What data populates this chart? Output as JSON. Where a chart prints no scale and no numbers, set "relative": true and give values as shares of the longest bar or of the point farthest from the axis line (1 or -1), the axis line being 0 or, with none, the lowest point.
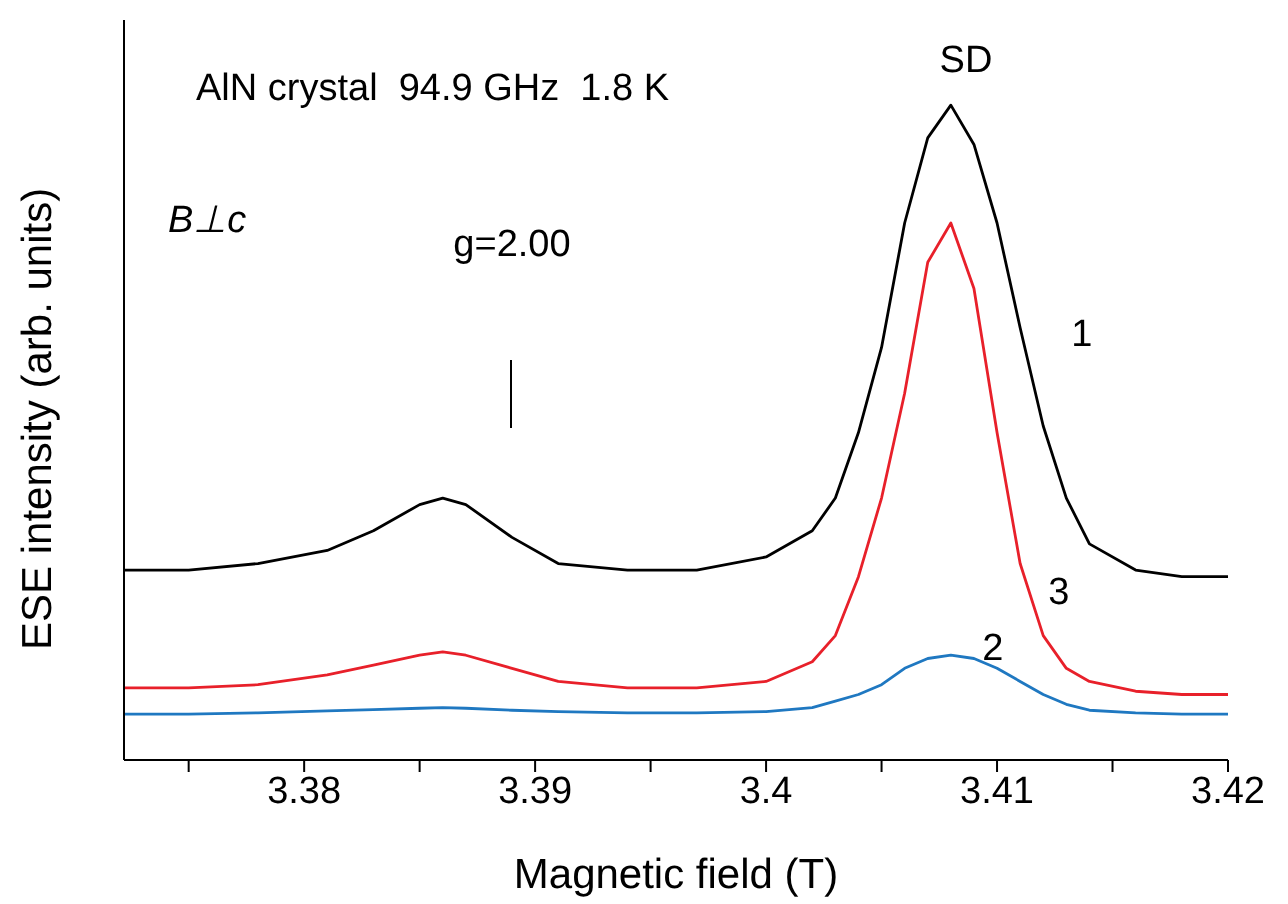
{
  "chart_data": {
    "type": "line",
    "relative": true,
    "xlabel": "Magnetic field (T)",
    "ylabel": "ESE intensity (arb. units)",
    "x": [
      3.3722,
      3.375,
      3.378,
      3.381,
      3.383,
      3.385,
      3.386,
      3.387,
      3.389,
      3.391,
      3.394,
      3.397,
      3.4,
      3.402,
      3.403,
      3.404,
      3.405,
      3.406,
      3.407,
      3.408,
      3.409,
      3.41,
      3.411,
      3.412,
      3.413,
      3.414,
      3.416,
      3.418,
      3.42
    ],
    "series": [
      {
        "name": "1",
        "color": "#000000",
        "values": [
          0.29,
          0.29,
          0.3,
          0.32,
          0.35,
          0.39,
          0.4,
          0.39,
          0.34,
          0.3,
          0.29,
          0.29,
          0.31,
          0.35,
          0.4,
          0.5,
          0.63,
          0.82,
          0.95,
          1.0,
          0.94,
          0.82,
          0.66,
          0.51,
          0.4,
          0.33,
          0.29,
          0.28,
          0.28
        ]
      },
      {
        "name": "3",
        "color": "#e8202a",
        "values": [
          0.11,
          0.11,
          0.115,
          0.13,
          0.145,
          0.16,
          0.165,
          0.16,
          0.14,
          0.12,
          0.11,
          0.11,
          0.12,
          0.15,
          0.19,
          0.28,
          0.4,
          0.56,
          0.76,
          0.82,
          0.72,
          0.5,
          0.3,
          0.19,
          0.14,
          0.12,
          0.105,
          0.1,
          0.1
        ]
      },
      {
        "name": "2",
        "color": "#1f78c1",
        "values": [
          0.07,
          0.07,
          0.072,
          0.075,
          0.077,
          0.079,
          0.08,
          0.079,
          0.076,
          0.074,
          0.072,
          0.072,
          0.074,
          0.08,
          0.09,
          0.1,
          0.115,
          0.14,
          0.155,
          0.16,
          0.155,
          0.14,
          0.12,
          0.1,
          0.085,
          0.076,
          0.072,
          0.07,
          0.07
        ]
      }
    ],
    "xlim": [
      3.3722,
      3.42
    ],
    "xticks": [
      {
        "value": 3.375,
        "label": null
      },
      3.38,
      {
        "value": 3.385,
        "label": null
      },
      3.39,
      {
        "value": 3.395,
        "label": null
      },
      3.4,
      {
        "value": 3.405,
        "label": null
      },
      3.41,
      {
        "value": 3.415,
        "label": null
      },
      3.42
    ],
    "annotations": [
      "AlN crystal  94.9 GHz  1.8 K",
      "B⊥c",
      "g=2.00",
      "SD"
    ]
  }
}
